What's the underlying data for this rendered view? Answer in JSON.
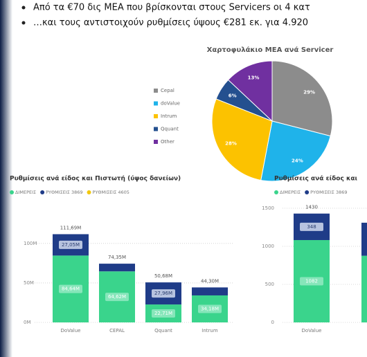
{
  "bullets": [
    "Από τα €70 δις ΜΕΑ που βρίσκονται στους Servicers οι 4 κατ",
    "…και τους αντιστοιχούν ρυθμίσεις ύψους €281 εκ. για 4.920"
  ],
  "chart_data": [
    {
      "type": "pie",
      "title": "Χαρτοφυλάκιο ΜΕΑ ανά Servicer",
      "categories": [
        "Cepal",
        "doValue",
        "Intrum",
        "Qquant",
        "Other"
      ],
      "values": [
        29,
        24,
        28,
        6,
        13
      ],
      "value_labels": [
        "29%",
        "24%",
        "28%",
        "6%",
        "13%"
      ],
      "colors": [
        "#8c8c8c",
        "#1fb3ea",
        "#fcc200",
        "#24508f",
        "#7030a0"
      ],
      "legend": "left"
    },
    {
      "type": "stacked_bar",
      "title": "Ρυθμίσεις ανά είδος και Πιστωτή (ύψος δανείων)",
      "categories": [
        "DoValue",
        "CEPAL",
        "Qquant",
        "Intrum"
      ],
      "series": [
        {
          "name": "ΔΙΜΕΡΕΙΣ",
          "color": "#3ad48c",
          "values": [
            84.64,
            64.62,
            22.71,
            34.18
          ],
          "value_labels": [
            "84,64M",
            "64,62M",
            "22,71M",
            "34,18M"
          ]
        },
        {
          "name": "ΡΥΘΜΙΣΕΙΣ 3869",
          "color": "#1f3c88",
          "values": [
            27.05,
            9.73,
            27.96,
            10.12
          ],
          "value_labels": [
            "27,05M",
            null,
            "27,96M",
            null
          ]
        },
        {
          "name": "ΡΥΘΜΙΣΕΙΣ 4605",
          "color": "#f2c80f",
          "values": [
            null,
            null,
            null,
            null
          ]
        }
      ],
      "totals": [
        111.69,
        74.35,
        50.68,
        44.3
      ],
      "total_labels": [
        "111,69M",
        "74,35M",
        "50,68M",
        "44,30M"
      ],
      "ylim": [
        0,
        120
      ],
      "yticks": [
        {
          "value": 0,
          "label": "0M"
        },
        {
          "value": 50,
          "label": "50M"
        },
        {
          "value": 100,
          "label": "100M"
        }
      ],
      "grid": true
    },
    {
      "type": "stacked_bar",
      "title": "Ρυθμίσεις ανά είδος και",
      "categories": [
        "DoValue",
        null
      ],
      "series": [
        {
          "name": "ΔΙΜΕΡΕΙΣ",
          "color": "#3ad48c",
          "values": [
            1082,
            876
          ],
          "value_labels": [
            "1082",
            null
          ]
        },
        {
          "name": "ΡΥΘΜΙΣΕΙΣ 3869",
          "color": "#1f3c88",
          "values": [
            348,
            434
          ],
          "value_labels": [
            "348",
            null
          ]
        }
      ],
      "totals": [
        1430,
        null
      ],
      "total_labels": [
        "1430",
        null
      ],
      "ylim": [
        0,
        1700
      ],
      "yticks": [
        0,
        500,
        1000,
        1500
      ],
      "grid": true
    }
  ]
}
